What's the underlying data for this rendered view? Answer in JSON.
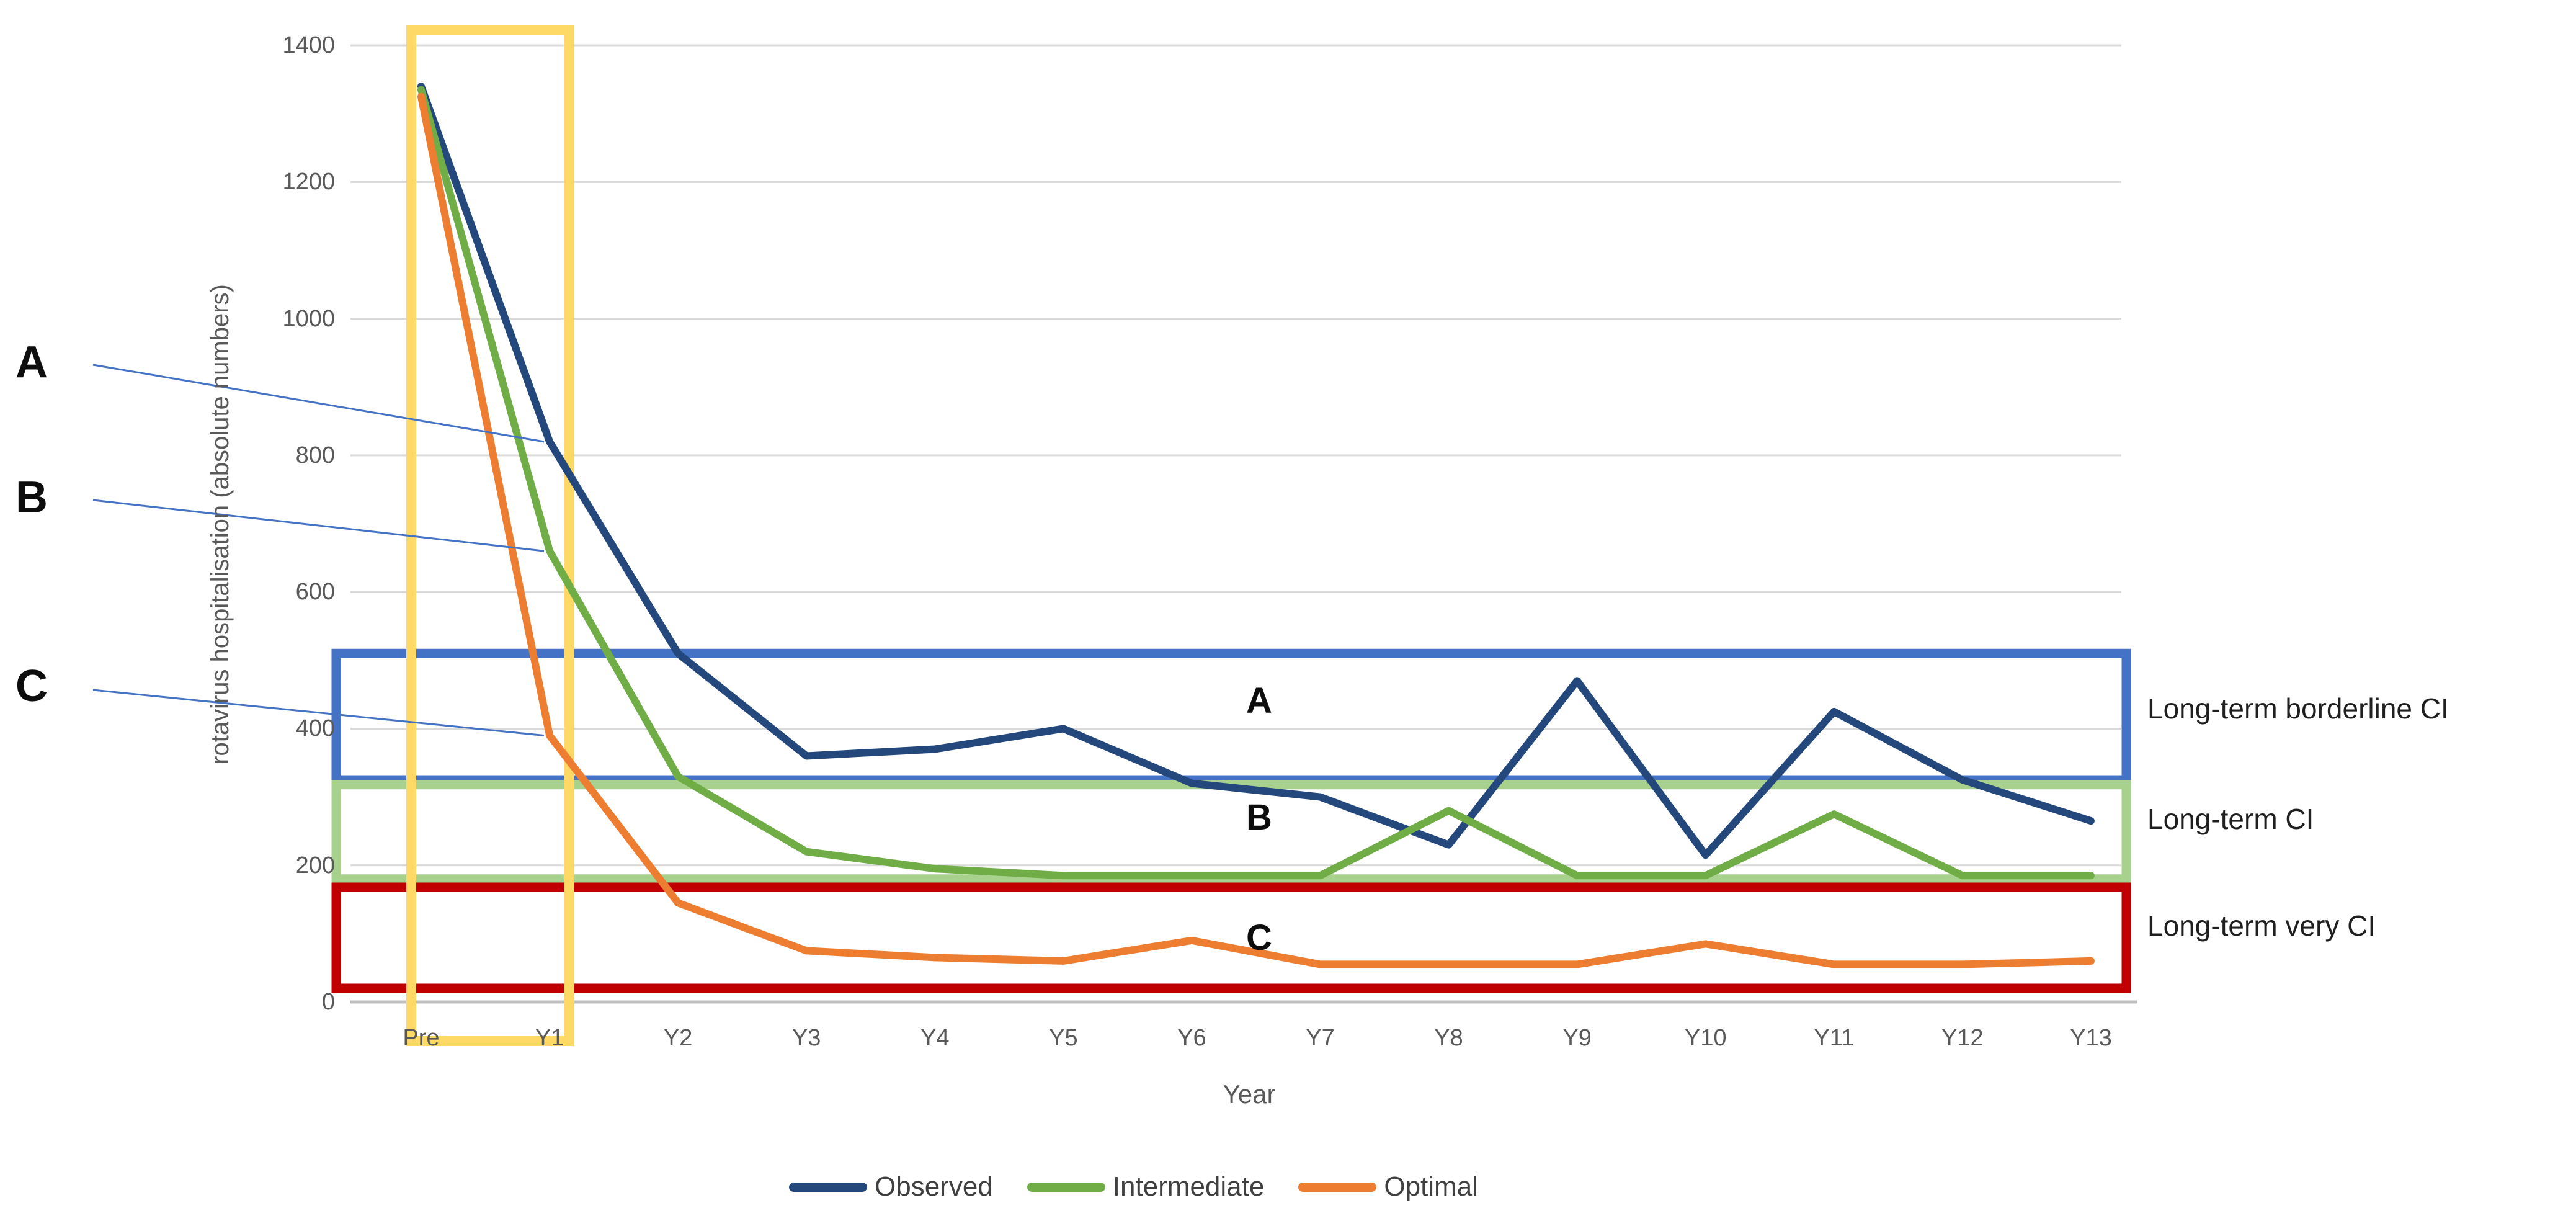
{
  "chart_data": {
    "type": "line",
    "title": "",
    "xlabel": "Year",
    "ylabel": "rotavirus hospitalisation (absolute numbers)",
    "ylim": [
      0,
      1400
    ],
    "yticks": [
      0,
      200,
      400,
      600,
      800,
      1000,
      1200,
      1400
    ],
    "grid": "horizontal",
    "legend_position": "bottom",
    "categories": [
      "Pre",
      "Y1",
      "Y2",
      "Y3",
      "Y4",
      "Y5",
      "Y6",
      "Y7",
      "Y8",
      "Y9",
      "Y10",
      "Y11",
      "Y12",
      "Y13"
    ],
    "series": [
      {
        "name": "Observed",
        "color": "#24477C",
        "values": [
          1340,
          820,
          510,
          360,
          370,
          400,
          320,
          300,
          230,
          470,
          215,
          425,
          325,
          265
        ]
      },
      {
        "name": "Intermediate",
        "color": "#70AD47",
        "values": [
          1335,
          660,
          330,
          220,
          195,
          185,
          185,
          185,
          280,
          185,
          185,
          275,
          185,
          185
        ]
      },
      {
        "name": "Optimal",
        "color": "#ED7D31",
        "values": [
          1325,
          390,
          145,
          75,
          65,
          60,
          90,
          55,
          55,
          55,
          85,
          55,
          55,
          60
        ]
      }
    ],
    "zones": [
      {
        "letter": "A",
        "label": "Long-term borderline CI",
        "color": "#4472C4",
        "from": 325,
        "to": 510
      },
      {
        "letter": "B",
        "label": "Long-term CI",
        "color": "#A9D18E",
        "from": 180,
        "to": 318
      },
      {
        "letter": "C",
        "label": "Long-term very CI",
        "color": "#C00000",
        "from": 20,
        "to": 168
      }
    ],
    "callouts": [
      {
        "letter": "A",
        "target_series": "Observed",
        "target_category": "Y1"
      },
      {
        "letter": "B",
        "target_series": "Intermediate",
        "target_category": "Y1"
      },
      {
        "letter": "C",
        "target_series": "Optimal",
        "target_category": "Y1"
      }
    ],
    "highlight_box": {
      "color": "#FFD966",
      "from_category": "Pre",
      "to_category": "Y1"
    }
  }
}
